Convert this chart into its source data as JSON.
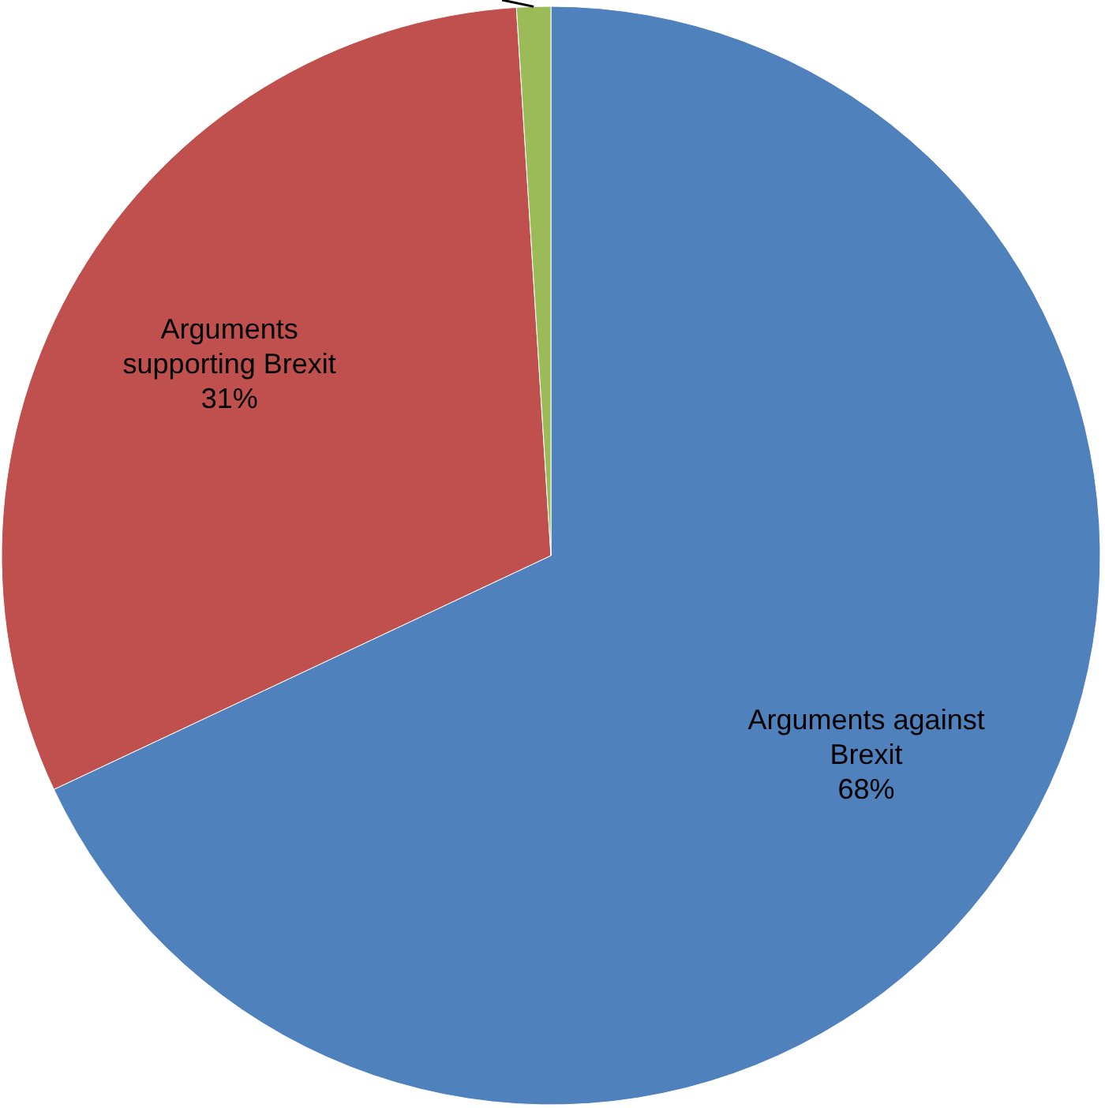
{
  "chart_data": {
    "type": "pie",
    "categories": [
      "Arguments against Brexit",
      "Arguments supporting Brexit",
      null
    ],
    "values": [
      68,
      31,
      1
    ],
    "value_labels": [
      "68%",
      "31%",
      null
    ],
    "colors": [
      "#4f81bd",
      "#c0504d",
      "#9bbb59"
    ]
  }
}
